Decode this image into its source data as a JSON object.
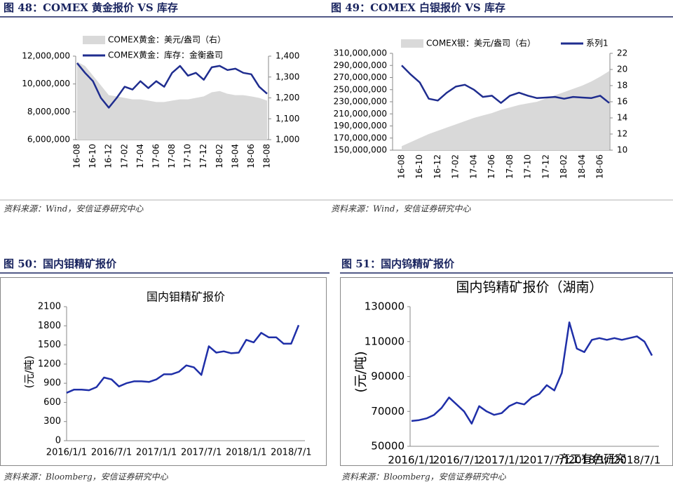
{
  "chart_data": [
    {
      "type": "line",
      "title": "图 48：COMEX 黄金报价 VS 库存",
      "source": "资料来源：Wind，安信证券研究中心",
      "legend": true,
      "categories": [
        "16-08",
        null,
        "16-10",
        null,
        "16-12",
        null,
        "17-02",
        null,
        "17-04",
        null,
        "17-06",
        null,
        "17-08",
        null,
        "17-10",
        null,
        "17-12",
        null,
        "18-02",
        null,
        "18-04",
        null,
        "18-06",
        null,
        "18-08"
      ],
      "series": [
        {
          "name": "COMEX黄金：美元/盎司（右）",
          "color": "#d9d9d9",
          "style": "area",
          "axis": "y2",
          "values": [
            1373,
            1353,
            1307,
            1260,
            1213,
            1207,
            1200,
            1193,
            1193,
            1187,
            1180,
            1180,
            1187,
            1193,
            1193,
            1200,
            1207,
            1227,
            1233,
            1220,
            1213,
            1213,
            1207,
            1200,
            1187
          ]
        },
        {
          "name": "COMEX黄金：库存：金衡盎司",
          "color": "#1f2d8f",
          "style": "line",
          "values": [
            11500000,
            10800000,
            10200000,
            9000000,
            8300000,
            9000000,
            9800000,
            9600000,
            10200000,
            9700000,
            10200000,
            9800000,
            10800000,
            11300000,
            10600000,
            10800000,
            10300000,
            11200000,
            11300000,
            11000000,
            11100000,
            10800000,
            10700000,
            9800000,
            9300000
          ]
        }
      ],
      "ylim": [
        6000000,
        12000000
      ],
      "yticks": [
        {
          "value": 6000000,
          "label": "6,000,000"
        },
        {
          "value": 8000000,
          "label": "8,000,000"
        },
        {
          "value": 10000000,
          "label": "10,000,000"
        },
        {
          "value": 12000000,
          "label": "12,000,000"
        }
      ],
      "y2lim": [
        1000,
        1400
      ],
      "y2ticks": [
        {
          "value": 1000,
          "label": "1,000"
        },
        {
          "value": 1100,
          "label": "1,100"
        },
        {
          "value": 1200,
          "label": "1,200"
        },
        {
          "value": 1300,
          "label": "1,300"
        },
        {
          "value": 1400,
          "label": "1,400"
        }
      ]
    },
    {
      "type": "line",
      "title": "图 49：COMEX 白银报价 VS 库存",
      "source": "资料来源：Wind，安信证券研究中心",
      "legend": true,
      "categories": [
        "16-08",
        null,
        "16-10",
        null,
        "16-12",
        null,
        "17-02",
        null,
        "17-04",
        null,
        "17-06",
        null,
        "17-08",
        null,
        "17-10",
        null,
        "17-12",
        null,
        "18-02",
        null,
        "18-04",
        null,
        "18-06",
        null
      ],
      "series": [
        {
          "name": "COMEX银：美元/盎司（右）",
          "color": "#d9d9d9",
          "style": "area",
          "axis": "y2",
          "values": [
            10.5,
            11,
            11.5,
            12,
            12.4,
            12.8,
            13.2,
            13.6,
            14,
            14.3,
            14.6,
            15,
            15.3,
            15.6,
            15.8,
            16,
            16.4,
            16.8,
            17.2,
            17.6,
            18,
            18.5,
            19.1,
            19.8
          ]
        },
        {
          "name": "系列1",
          "color": "#1f2d8f",
          "style": "line",
          "values": [
            290000000,
            275000000,
            262000000,
            235000000,
            232000000,
            245000000,
            255000000,
            258000000,
            250000000,
            238000000,
            240000000,
            228000000,
            240000000,
            245000000,
            240000000,
            236000000,
            237000000,
            238000000,
            235000000,
            238000000,
            237000000,
            236000000,
            240000000,
            228000000
          ]
        }
      ],
      "ylim": [
        150000000,
        310000000
      ],
      "yticks": [
        {
          "value": 150000000,
          "label": "150,000,000"
        },
        {
          "value": 170000000,
          "label": "170,000,000"
        },
        {
          "value": 190000000,
          "label": "190,000,000"
        },
        {
          "value": 210000000,
          "label": "210,000,000"
        },
        {
          "value": 230000000,
          "label": "230,000,000"
        },
        {
          "value": 250000000,
          "label": "250,000,000"
        },
        {
          "value": 270000000,
          "label": "270,000,000"
        },
        {
          "value": 290000000,
          "label": "290,000,000"
        },
        {
          "value": 310000000,
          "label": "310,000,000"
        }
      ],
      "y2lim": [
        10,
        22
      ],
      "y2ticks": [
        10,
        12,
        14,
        16,
        18,
        20,
        22
      ]
    },
    {
      "type": "line",
      "title": "图 50：国内钼精矿报价",
      "chart_title": "国内钼精矿报价",
      "y_label": "(元/吨)",
      "source": "资料来源：Bloomberg，安信证券研究中心",
      "categories": [
        "2016/1/1",
        null,
        null,
        null,
        null,
        null,
        "2016/7/1",
        null,
        null,
        null,
        null,
        null,
        "2017/1/1",
        null,
        null,
        null,
        null,
        null,
        "2017/7/1",
        null,
        null,
        null,
        null,
        null,
        "2018/1/1",
        null,
        null,
        null,
        null,
        null,
        "2018/7/1",
        null
      ],
      "color": "#1f2fa8",
      "values": [
        750,
        800,
        800,
        790,
        840,
        990,
        960,
        850,
        900,
        930,
        930,
        920,
        960,
        1040,
        1040,
        1080,
        1180,
        1150,
        1030,
        1480,
        1380,
        1400,
        1370,
        1380,
        1580,
        1540,
        1690,
        1620,
        1620,
        1520,
        1520,
        1810
      ],
      "ylim": [
        0,
        2100
      ],
      "yticks": [
        0,
        300,
        600,
        900,
        1200,
        1500,
        1800,
        2100
      ]
    },
    {
      "type": "line",
      "title": "图 51：国内钨精矿报价",
      "chart_title": "国内钨精矿报价（湖南）",
      "y_label": "(元/吨)",
      "source": "资料来源：Bloomberg，安信证券研究中心",
      "annotation": "齐工有色研究",
      "categories": [
        "2016/1/1",
        null,
        null,
        null,
        null,
        null,
        "2016/7/1",
        null,
        null,
        null,
        null,
        null,
        "2017/1/1",
        null,
        null,
        null,
        null,
        null,
        "2017/7/1",
        null,
        null,
        null,
        null,
        null,
        "2018/1/1",
        null,
        null,
        null,
        null,
        null,
        "2018/7/1",
        null,
        null
      ],
      "color": "#1f2fa8",
      "values": [
        64500,
        65000,
        66000,
        68000,
        72000,
        78000,
        74000,
        70000,
        63000,
        73000,
        70000,
        68000,
        69000,
        73000,
        75000,
        74000,
        78000,
        80000,
        85000,
        82000,
        92000,
        121000,
        106000,
        104000,
        111000,
        112000,
        111000,
        112000,
        111000,
        112000,
        113000,
        110000,
        102000
      ],
      "ylim": [
        50000,
        130000
      ],
      "yticks": [
        50000,
        70000,
        90000,
        110000,
        130000
      ]
    }
  ]
}
